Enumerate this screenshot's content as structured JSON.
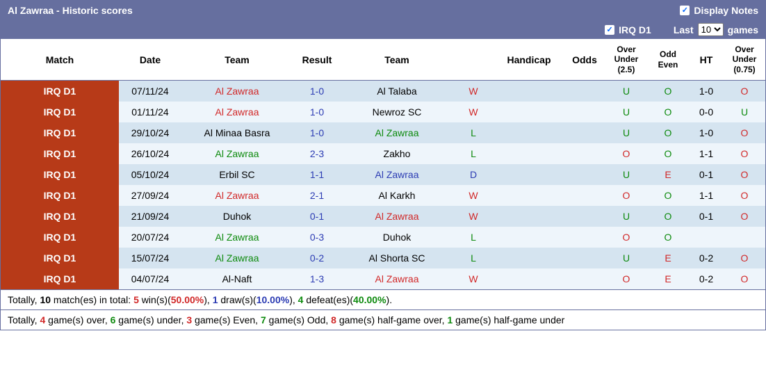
{
  "header": {
    "title": "Al Zawraa - Historic scores",
    "display_notes": "Display Notes",
    "league_filter": "IRQ D1",
    "last_label": "Last",
    "games_label": "games",
    "games_count": "10"
  },
  "columns": {
    "match": "Match",
    "date": "Date",
    "team1": "Team",
    "result": "Result",
    "team2": "Team",
    "handicap": "Handicap",
    "odds": "Odds",
    "ou25": "Over Under (2.5)",
    "oe": "Odd Even",
    "ht": "HT",
    "ou075": "Over Under (0.75)"
  },
  "rows": [
    {
      "match": "IRQ D1",
      "date": "07/11/24",
      "team1": "Al Zawraa",
      "team1_color": "red",
      "score": "1-0",
      "team2": "Al Talaba",
      "team2_color": "black",
      "wld": "W",
      "ou25": "U",
      "oe": "O",
      "ht": "1-0",
      "ou075": "O"
    },
    {
      "match": "IRQ D1",
      "date": "01/11/24",
      "team1": "Al Zawraa",
      "team1_color": "red",
      "score": "1-0",
      "team2": "Newroz SC",
      "team2_color": "black",
      "wld": "W",
      "ou25": "U",
      "oe": "O",
      "ht": "0-0",
      "ou075": "U"
    },
    {
      "match": "IRQ D1",
      "date": "29/10/24",
      "team1": "Al Minaa Basra",
      "team1_color": "black",
      "score": "1-0",
      "team2": "Al Zawraa",
      "team2_color": "green",
      "wld": "L",
      "ou25": "U",
      "oe": "O",
      "ht": "1-0",
      "ou075": "O"
    },
    {
      "match": "IRQ D1",
      "date": "26/10/24",
      "team1": "Al Zawraa",
      "team1_color": "green",
      "score": "2-3",
      "team2": "Zakho",
      "team2_color": "black",
      "wld": "L",
      "ou25": "O",
      "oe": "O",
      "ht": "1-1",
      "ou075": "O"
    },
    {
      "match": "IRQ D1",
      "date": "05/10/24",
      "team1": "Erbil SC",
      "team1_color": "black",
      "score": "1-1",
      "team2": "Al Zawraa",
      "team2_color": "blue",
      "wld": "D",
      "ou25": "U",
      "oe": "E",
      "ht": "0-1",
      "ou075": "O"
    },
    {
      "match": "IRQ D1",
      "date": "27/09/24",
      "team1": "Al Zawraa",
      "team1_color": "red",
      "score": "2-1",
      "team2": "Al Karkh",
      "team2_color": "black",
      "wld": "W",
      "ou25": "O",
      "oe": "O",
      "ht": "1-1",
      "ou075": "O"
    },
    {
      "match": "IRQ D1",
      "date": "21/09/24",
      "team1": "Duhok",
      "team1_color": "black",
      "score": "0-1",
      "team2": "Al Zawraa",
      "team2_color": "red",
      "wld": "W",
      "ou25": "U",
      "oe": "O",
      "ht": "0-1",
      "ou075": "O"
    },
    {
      "match": "IRQ D1",
      "date": "20/07/24",
      "team1": "Al Zawraa",
      "team1_color": "green",
      "score": "0-3",
      "team2": "Duhok",
      "team2_color": "black",
      "wld": "L",
      "ou25": "O",
      "oe": "O",
      "ht": "",
      "ou075": ""
    },
    {
      "match": "IRQ D1",
      "date": "15/07/24",
      "team1": "Al Zawraa",
      "team1_color": "green",
      "score": "0-2",
      "team2": "Al Shorta SC",
      "team2_color": "black",
      "wld": "L",
      "ou25": "U",
      "oe": "E",
      "ht": "0-2",
      "ou075": "O"
    },
    {
      "match": "IRQ D1",
      "date": "04/07/24",
      "team1": "Al-Naft",
      "team1_color": "black",
      "score": "1-3",
      "team2": "Al Zawraa",
      "team2_color": "red",
      "wld": "W",
      "ou25": "O",
      "oe": "E",
      "ht": "0-2",
      "ou075": "O"
    }
  ],
  "summary1": {
    "prefix": "Totally, ",
    "total_n": "10",
    "total_label": " match(es) in total: ",
    "wins_n": "5",
    "wins_label": " win(s)(",
    "wins_pct": "50.00%",
    "close1": "), ",
    "draws_n": "1",
    "draws_label": " draw(s)(",
    "draws_pct": "10.00%",
    "close2": "), ",
    "defeats_n": "4",
    "defeats_label": " defeat(es)(",
    "defeats_pct": "40.00%",
    "close3": ")."
  },
  "summary2": {
    "prefix": "Totally, ",
    "over_n": "4",
    "over_label": " game(s) over, ",
    "under_n": "6",
    "under_label": " game(s) under, ",
    "even_n": "3",
    "even_label": " game(s) Even, ",
    "odd_n": "7",
    "odd_label": " game(s) Odd, ",
    "hgover_n": "8",
    "hgover_label": " game(s) half-game over, ",
    "hgunder_n": "1",
    "hgunder_label": " game(s) half-game under"
  }
}
